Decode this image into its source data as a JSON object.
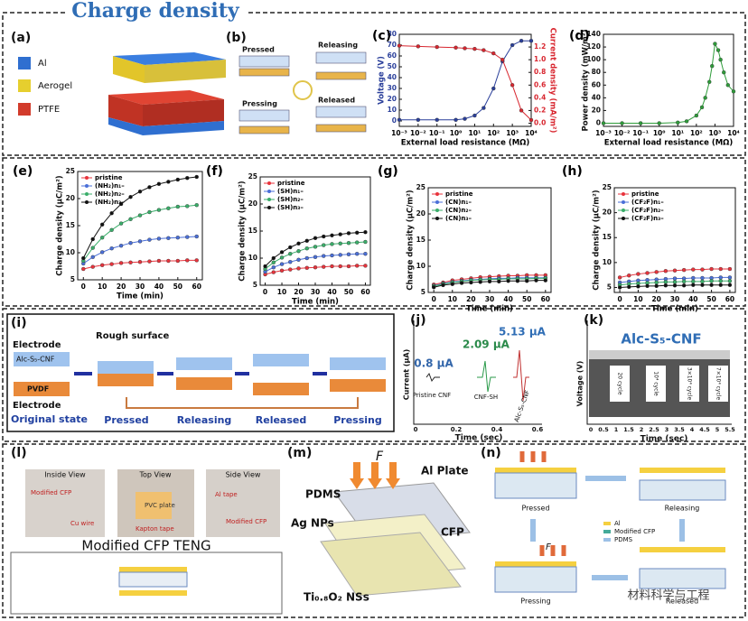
{
  "title": "Charge density",
  "chart_data": [
    {
      "type": "line",
      "panel": "(c)",
      "xlabel": "External load resistance (MΩ)",
      "ylabel": "Voltage (V)",
      "y2label": "Current density (mA/m²)",
      "xlog": true,
      "x": [
        0.001,
        0.01,
        0.1,
        1,
        3,
        10,
        30,
        100,
        300,
        1000,
        3000,
        10000
      ],
      "xlim": [
        0.001,
        10000
      ],
      "xticks": [
        {
          "value": 0.001,
          "label": "10⁻³"
        },
        {
          "value": 0.01,
          "label": "10⁻²"
        },
        {
          "value": 0.1,
          "label": "10⁻¹"
        },
        {
          "value": 1,
          "label": "10⁰"
        },
        {
          "value": 10,
          "label": "10¹"
        },
        {
          "value": 100,
          "label": "10²"
        },
        {
          "value": 1000,
          "label": "10³"
        },
        {
          "value": 10000,
          "label": "10⁴"
        }
      ],
      "ylim": [
        -5,
        80
      ],
      "yticks": [
        0,
        10,
        20,
        30,
        40,
        50,
        60,
        70,
        80
      ],
      "y2lim": [
        -0.05,
        1.4
      ],
      "y2ticks": [
        {
          "value": 0,
          "label": "0.0"
        },
        0.2,
        0.4,
        0.6,
        0.8,
        {
          "value": 1,
          "label": "1.0"
        },
        1.2
      ],
      "series": [
        {
          "name": "Voltage",
          "color": "#2a3f9a",
          "values": [
            1,
            1,
            1,
            1,
            2,
            5,
            12,
            30,
            55,
            70,
            74,
            74
          ]
        },
        {
          "name": "Current density",
          "color": "#d8262f",
          "axis": "y2",
          "values": [
            1.22,
            1.21,
            1.2,
            1.19,
            1.18,
            1.17,
            1.15,
            1.1,
            1.0,
            0.6,
            0.2,
            0.05
          ]
        }
      ]
    },
    {
      "type": "line",
      "panel": "(d)",
      "xlabel": "External load resistance (MΩ)",
      "ylabel": "Power density (mW/m²)",
      "xlog": true,
      "x": [
        0.001,
        0.01,
        0.1,
        1,
        10,
        30,
        100,
        200,
        300,
        500,
        700,
        1000,
        1500,
        2000,
        3000,
        5000,
        10000
      ],
      "xlim": [
        0.001,
        10000
      ],
      "xticks": [
        {
          "value": 0.001,
          "label": "10⁻³"
        },
        {
          "value": 0.01,
          "label": "10⁻²"
        },
        {
          "value": 0.1,
          "label": "10⁻¹"
        },
        {
          "value": 1,
          "label": "10⁰"
        },
        {
          "value": 10,
          "label": "10¹"
        },
        {
          "value": 100,
          "label": "10²"
        },
        {
          "value": 1000,
          "label": "10³"
        },
        {
          "value": 10000,
          "label": "10⁴"
        }
      ],
      "ylim": [
        -5,
        140
      ],
      "yticks": [
        0,
        20,
        40,
        60,
        80,
        100,
        120,
        140
      ],
      "series": [
        {
          "name": "Power density",
          "color": "#2e9c3a",
          "values": [
            0,
            0,
            0,
            0,
            1,
            3,
            12,
            25,
            40,
            65,
            90,
            125,
            115,
            100,
            80,
            60,
            50
          ]
        }
      ]
    },
    {
      "type": "line",
      "panel": "(e)",
      "xlabel": "Time (min)",
      "ylabel": "Charge density (μC/m²)",
      "legend": true,
      "x": [
        0,
        5,
        10,
        15,
        20,
        25,
        30,
        35,
        40,
        45,
        50,
        55,
        60
      ],
      "xlim": [
        -3,
        63
      ],
      "xticks": [
        0,
        10,
        20,
        30,
        40,
        50,
        60
      ],
      "ylim": [
        5,
        25
      ],
      "yticks": [
        5,
        10,
        15,
        20,
        25
      ],
      "series": [
        {
          "name": "pristine",
          "color": "#e8333c",
          "values": [
            7,
            7.4,
            7.7,
            7.9,
            8.1,
            8.2,
            8.3,
            8.4,
            8.5,
            8.5,
            8.5,
            8.6,
            8.6
          ]
        },
        {
          "name": "(NH₂)n₁–",
          "color": "#4a6fd8",
          "values": [
            8,
            9.2,
            10.1,
            10.8,
            11.3,
            11.8,
            12.1,
            12.4,
            12.6,
            12.7,
            12.8,
            12.9,
            13
          ]
        },
        {
          "name": "(NH₂)n₂–",
          "color": "#3aae6a",
          "values": [
            8.5,
            10.9,
            12.8,
            14.2,
            15.4,
            16.2,
            16.9,
            17.5,
            17.9,
            18.2,
            18.5,
            18.6,
            18.8
          ]
        },
        {
          "name": "(NH₂)n₃–",
          "color": "#111111",
          "values": [
            9,
            12.5,
            15.2,
            17.3,
            19,
            20.3,
            21.3,
            22.1,
            22.7,
            23.1,
            23.5,
            23.8,
            24
          ]
        }
      ]
    },
    {
      "type": "line",
      "panel": "(f)",
      "xlabel": "Time (min)",
      "ylabel": "Charge density (μC/m²)",
      "legend": true,
      "x": [
        0,
        5,
        10,
        15,
        20,
        25,
        30,
        35,
        40,
        45,
        50,
        55,
        60
      ],
      "xlim": [
        -3,
        63
      ],
      "xticks": [
        0,
        10,
        20,
        30,
        40,
        50,
        60
      ],
      "ylim": [
        5,
        25
      ],
      "yticks": [
        5,
        10,
        15,
        20,
        25
      ],
      "series": [
        {
          "name": "pristine",
          "color": "#e8333c",
          "values": [
            7,
            7.4,
            7.7,
            7.9,
            8.1,
            8.2,
            8.3,
            8.4,
            8.5,
            8.5,
            8.5,
            8.6,
            8.6
          ]
        },
        {
          "name": "(SH)n₁–",
          "color": "#4a6fd8",
          "values": [
            7.5,
            8.3,
            8.9,
            9.3,
            9.7,
            10,
            10.2,
            10.4,
            10.5,
            10.6,
            10.7,
            10.8,
            10.8
          ]
        },
        {
          "name": "(SH)n₂–",
          "color": "#3aae6a",
          "values": [
            8,
            9.2,
            10.1,
            10.8,
            11.3,
            11.8,
            12.1,
            12.4,
            12.6,
            12.7,
            12.8,
            12.9,
            13
          ]
        },
        {
          "name": "(SH)n₃–",
          "color": "#111111",
          "values": [
            8.5,
            10,
            11.1,
            12,
            12.7,
            13.2,
            13.7,
            14,
            14.2,
            14.4,
            14.6,
            14.7,
            14.8
          ]
        }
      ]
    },
    {
      "type": "line",
      "panel": "(g)",
      "xlabel": "Time (min)",
      "ylabel": "Charge density (μC/m²)",
      "legend": true,
      "x": [
        0,
        5,
        10,
        15,
        20,
        25,
        30,
        35,
        40,
        45,
        50,
        55,
        60
      ],
      "xlim": [
        -3,
        63
      ],
      "xticks": [
        0,
        10,
        20,
        30,
        40,
        50,
        60
      ],
      "ylim": [
        5,
        25
      ],
      "yticks": [
        5,
        10,
        15,
        20,
        25
      ],
      "series": [
        {
          "name": "pristine",
          "color": "#e8333c",
          "values": [
            6.5,
            6.9,
            7.3,
            7.5,
            7.7,
            7.9,
            8,
            8.1,
            8.2,
            8.2,
            8.3,
            8.3,
            8.3
          ]
        },
        {
          "name": "(CN)n₁–",
          "color": "#4a6fd8",
          "values": [
            6.3,
            6.7,
            7,
            7.2,
            7.4,
            7.5,
            7.6,
            7.7,
            7.7,
            7.8,
            7.8,
            7.8,
            7.8
          ]
        },
        {
          "name": "(CN)n₂–",
          "color": "#3aae6a",
          "values": [
            6.2,
            6.6,
            6.9,
            7.1,
            7.3,
            7.4,
            7.5,
            7.5,
            7.6,
            7.6,
            7.6,
            7.7,
            7.7
          ]
        },
        {
          "name": "(CN)n₃–",
          "color": "#111111",
          "values": [
            6,
            6.4,
            6.6,
            6.8,
            6.9,
            7,
            7.1,
            7.1,
            7.2,
            7.2,
            7.2,
            7.3,
            7.3
          ]
        }
      ]
    },
    {
      "type": "line",
      "panel": "(h)",
      "xlabel": "Time (min)",
      "ylabel": "Charge density (μC/m²)",
      "legend": true,
      "x": [
        0,
        5,
        10,
        15,
        20,
        25,
        30,
        35,
        40,
        45,
        50,
        55,
        60
      ],
      "xlim": [
        -3,
        63
      ],
      "xticks": [
        0,
        10,
        20,
        30,
        40,
        50,
        60
      ],
      "ylim": [
        4,
        25
      ],
      "yticks": [
        5,
        10,
        15,
        20,
        25
      ],
      "series": [
        {
          "name": "pristine",
          "color": "#e8333c",
          "values": [
            7,
            7.4,
            7.7,
            7.9,
            8.1,
            8.3,
            8.4,
            8.5,
            8.6,
            8.6,
            8.7,
            8.7,
            8.7
          ]
        },
        {
          "name": "(CF₂F)n₁–",
          "color": "#4a6fd8",
          "values": [
            6,
            6.2,
            6.4,
            6.5,
            6.6,
            6.7,
            6.8,
            6.8,
            6.9,
            6.9,
            6.9,
            7,
            7
          ]
        },
        {
          "name": "(CF₂F)n₂–",
          "color": "#3aae6a",
          "values": [
            5.5,
            5.7,
            5.8,
            5.9,
            6,
            6.1,
            6.1,
            6.2,
            6.2,
            6.2,
            6.3,
            6.3,
            6.3
          ]
        },
        {
          "name": "(CF₂F)n₃–",
          "color": "#111111",
          "values": [
            5,
            5.1,
            5.2,
            5.3,
            5.3,
            5.4,
            5.4,
            5.4,
            5.5,
            5.5,
            5.5,
            5.5,
            5.5
          ]
        }
      ]
    }
  ],
  "panels": {
    "a": {
      "label": "(a)",
      "layers": [
        "Al",
        "Aerogel",
        "PTFE"
      ]
    },
    "b": {
      "label": "(b)",
      "states": [
        "Pressed",
        "Releasing",
        "Pressing",
        "Released"
      ]
    },
    "i": {
      "label": "(i)",
      "texts": [
        "Electrode",
        "Rough surface",
        "Alc-S₅-CNF",
        "PVDF",
        "Electrode",
        "Original state"
      ],
      "states": [
        "Pressed",
        "Releasing",
        "Released",
        "Pressing"
      ]
    },
    "j": {
      "label": "(j)",
      "ylabel": "Current (μA)",
      "xlabel": "Time (sec)",
      "xticks": [
        "0",
        "0.2",
        "0.4",
        "0.6"
      ],
      "peaks": [
        "0.8 μA",
        "2.09 μA",
        "5.13 μA"
      ],
      "samples": [
        "Pristine CNF",
        "CNF-SH",
        "Alc-S₅-CNF"
      ]
    },
    "k": {
      "label": "(k)",
      "title": "Alc-S₅-CNF",
      "ylabel": "Voltage (V)",
      "xlabel": "Time (sec)",
      "xticks": [
        "0",
        "0.5",
        "1",
        "1.5",
        "2",
        "2.5",
        "3",
        "3.5",
        "4",
        "4.5",
        "5",
        "5.5"
      ],
      "cycles": [
        "20 cycle",
        "10⁴ cycle",
        "3×10⁴ cycle",
        "7×10⁴ cycle"
      ]
    },
    "l": {
      "label": "(l)",
      "views": [
        "Inside View",
        "Top View",
        "Side View"
      ],
      "notes": [
        "Modified CFP",
        "Cu wire",
        "PVC plate",
        "Kapton tape",
        "Al tape",
        "Modified CFP"
      ],
      "caption": "Modified CFP TENG"
    },
    "m": {
      "label": "(m)",
      "force": "F",
      "layers": [
        "Al Plate",
        "PDMS",
        "Ag NPs",
        "CFP",
        "Ti₀.₈O₂ NSs"
      ]
    },
    "n": {
      "label": "(n)",
      "states": [
        "Pressed",
        "Releasing",
        "Pressing",
        "Released"
      ],
      "legend": [
        "Al",
        "Modified CFP",
        "PDMS"
      ],
      "force": "F"
    },
    "watermark": "材料科学与工程"
  }
}
